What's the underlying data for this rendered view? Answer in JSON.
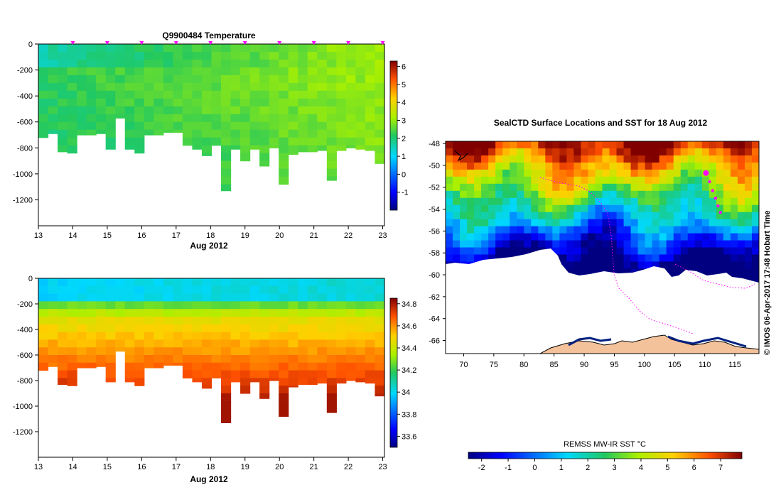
{
  "chart_data": [
    {
      "type": "heatmap",
      "title": "Q9900484  Temperature",
      "xlabel": "Aug 2012",
      "ylabel": "",
      "x_ticks": [
        "13",
        "14",
        "15",
        "16",
        "17",
        "18",
        "19",
        "20",
        "21",
        "22",
        "23"
      ],
      "xlim": [
        13,
        23.05
      ],
      "y_ticks": [
        "0",
        "-200",
        "-400",
        "-600",
        "-800",
        "-1000",
        "-1200"
      ],
      "ylim": [
        -1400,
        0
      ],
      "colorbar_ticks": [
        "6",
        "5",
        "4",
        "3",
        "2",
        "1",
        "0",
        "-1"
      ],
      "colorbar_range": [
        -2,
        6.3
      ],
      "profile_marker_days": [
        14,
        15,
        16,
        17,
        18,
        19,
        20,
        21,
        22,
        23
      ],
      "profile_bottom_depths": [
        -720,
        -690,
        -830,
        -840,
        -700,
        -700,
        -690,
        -810,
        -570,
        -810,
        -840,
        -700,
        -700,
        -680,
        -680,
        -780,
        -810,
        -860,
        -780,
        -1130,
        -810,
        -900,
        -810,
        -940,
        -800,
        -1080,
        -850,
        -830,
        -830,
        -820,
        -1050,
        -820,
        -800,
        -810,
        -820,
        -920
      ],
      "value_range": [
        -1,
        4.5
      ]
    },
    {
      "type": "heatmap",
      "title": "",
      "xlabel": "Aug 2012",
      "x_ticks": [
        "13",
        "14",
        "15",
        "16",
        "17",
        "18",
        "19",
        "20",
        "21",
        "22",
        "23"
      ],
      "xlim": [
        13,
        23.05
      ],
      "y_ticks": [
        "0",
        "-200",
        "-400",
        "-600",
        "-800",
        "-1000",
        "-1200"
      ],
      "ylim": [
        -1400,
        0
      ],
      "colorbar_ticks": [
        "34.8",
        "34.6",
        "34.4",
        "34.2",
        "34",
        "33.8",
        "33.6"
      ],
      "colorbar_range": [
        33.5,
        34.85
      ],
      "profile_bottom_depths": [
        -720,
        -690,
        -830,
        -840,
        -700,
        -700,
        -690,
        -810,
        -570,
        -810,
        -840,
        -700,
        -700,
        -680,
        -680,
        -780,
        -810,
        -860,
        -780,
        -1130,
        -810,
        -900,
        -810,
        -940,
        -800,
        -1080,
        -850,
        -830,
        -830,
        -820,
        -1050,
        -820,
        -800,
        -810,
        -820,
        -920
      ]
    },
    {
      "type": "heatmap",
      "title": "SealCTD Surface Locations and SST for 18 Aug 2012",
      "side_label": "© IMOS 06-Apr-2017 17:48 Hobart Time",
      "x_ticks": [
        "70",
        "75",
        "80",
        "85",
        "90",
        "95",
        "100",
        "105",
        "110",
        "115"
      ],
      "xlim": [
        67,
        119
      ],
      "y_ticks": [
        "-48",
        "-50",
        "-52",
        "-54",
        "-56",
        "-58",
        "-60",
        "-62",
        "-64",
        "-66"
      ],
      "ylim": [
        -67.2,
        -47.8
      ],
      "colorbar_label": "REMSS MW-IR SST °C",
      "colorbar_ticks": [
        "-2",
        "-1",
        "0",
        "1",
        "2",
        "3",
        "4",
        "5",
        "6",
        "7"
      ],
      "colorbar_range": [
        -2.5,
        7.8
      ],
      "track": [
        [
          110.2,
          -50.7
        ],
        [
          110.8,
          -51.5
        ],
        [
          111.3,
          -52.3
        ],
        [
          111.8,
          -53.0
        ],
        [
          112.2,
          -53.7
        ],
        [
          112.6,
          -54.3
        ]
      ],
      "track_start": [
        110.2,
        -50.7
      ]
    }
  ]
}
